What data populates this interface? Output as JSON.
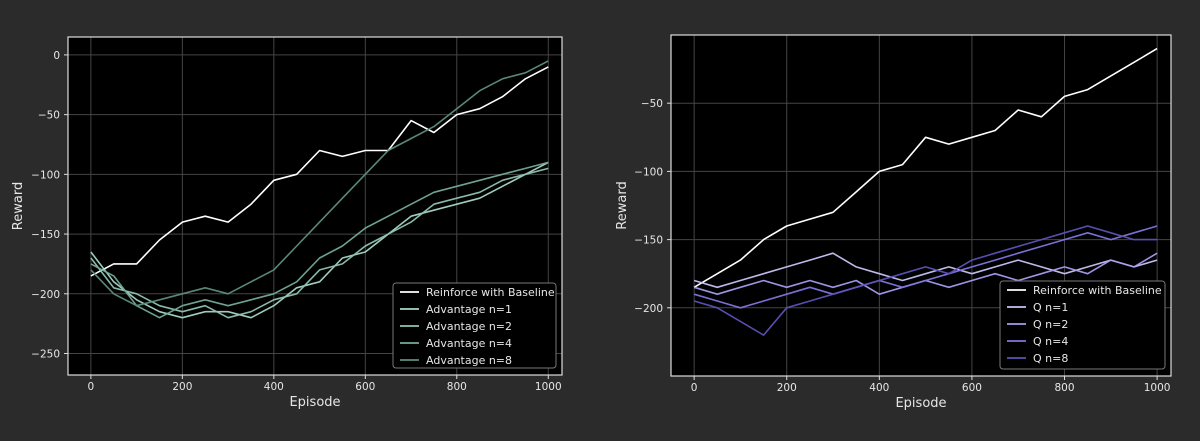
{
  "theme": {
    "background": "#2b2b2b",
    "axes_face": "#000000",
    "grid": "#444444",
    "spine": "#dddddd",
    "text": "#e6e6e6",
    "legend_face": "#000000"
  },
  "chart_data": [
    {
      "type": "line",
      "title": "",
      "xlabel": "Episode",
      "ylabel": "Reward",
      "xlim": [
        -50,
        1030
      ],
      "ylim": [
        -268,
        15
      ],
      "xticks": [
        0,
        200,
        400,
        600,
        800,
        1000
      ],
      "yticks": [
        0,
        -50,
        -100,
        -150,
        -200,
        -250
      ],
      "xtick_labels": [
        "0",
        "200",
        "400",
        "600",
        "800",
        "1000"
      ],
      "ytick_labels": [
        "0",
        "−50",
        "−100",
        "−150",
        "−200",
        "−250"
      ],
      "grid": true,
      "legend_position": "lower-right",
      "series": [
        {
          "name": "Reinforce with Baseline",
          "color": "#ffffff",
          "x": [
            0,
            50,
            100,
            150,
            200,
            250,
            300,
            350,
            400,
            450,
            500,
            550,
            600,
            650,
            700,
            750,
            800,
            850,
            900,
            950,
            1000
          ],
          "y": [
            -185,
            -175,
            -175,
            -155,
            -140,
            -135,
            -140,
            -125,
            -105,
            -100,
            -80,
            -85,
            -80,
            -80,
            -55,
            -65,
            -50,
            -45,
            -35,
            -20,
            -10
          ]
        },
        {
          "name": "Advantage n=1",
          "color": "#a7d8c6",
          "x": [
            0,
            50,
            100,
            150,
            200,
            250,
            300,
            350,
            400,
            450,
            500,
            550,
            600,
            650,
            700,
            750,
            800,
            850,
            900,
            950,
            1000
          ],
          "y": [
            -165,
            -190,
            -205,
            -215,
            -220,
            -215,
            -215,
            -220,
            -210,
            -195,
            -190,
            -170,
            -165,
            -150,
            -135,
            -130,
            -125,
            -120,
            -110,
            -100,
            -90
          ]
        },
        {
          "name": "Advantage n=2",
          "color": "#8fc4b0",
          "x": [
            0,
            50,
            100,
            150,
            200,
            250,
            300,
            350,
            400,
            450,
            500,
            550,
            600,
            650,
            700,
            750,
            800,
            850,
            900,
            950,
            1000
          ],
          "y": [
            -170,
            -195,
            -200,
            -210,
            -215,
            -210,
            -220,
            -215,
            -205,
            -200,
            -180,
            -175,
            -160,
            -150,
            -140,
            -125,
            -120,
            -115,
            -105,
            -100,
            -95
          ]
        },
        {
          "name": "Advantage n=4",
          "color": "#74ab97",
          "x": [
            0,
            50,
            100,
            150,
            200,
            250,
            300,
            350,
            400,
            450,
            500,
            550,
            600,
            650,
            700,
            750,
            800,
            850,
            900,
            950,
            1000
          ],
          "y": [
            -175,
            -185,
            -210,
            -220,
            -210,
            -205,
            -210,
            -205,
            -200,
            -190,
            -170,
            -160,
            -145,
            -135,
            -125,
            -115,
            -110,
            -105,
            -100,
            -95,
            -90
          ]
        },
        {
          "name": "Advantage n=8",
          "color": "#5e8f7e",
          "x": [
            0,
            50,
            100,
            150,
            200,
            250,
            300,
            350,
            400,
            450,
            500,
            550,
            600,
            650,
            700,
            750,
            800,
            850,
            900,
            950,
            1000
          ],
          "y": [
            -180,
            -200,
            -210,
            -205,
            -200,
            -195,
            -200,
            -190,
            -180,
            -160,
            -140,
            -120,
            -100,
            -80,
            -70,
            -60,
            -45,
            -30,
            -20,
            -15,
            -5
          ]
        }
      ]
    },
    {
      "type": "line",
      "title": "",
      "xlabel": "Episode",
      "ylabel": "Reward",
      "xlim": [
        -50,
        1030
      ],
      "ylim": [
        -250,
        0
      ],
      "xticks": [
        0,
        200,
        400,
        600,
        800,
        1000
      ],
      "yticks": [
        -50,
        -100,
        -150,
        -200
      ],
      "xtick_labels": [
        "0",
        "200",
        "400",
        "600",
        "800",
        "1000"
      ],
      "ytick_labels": [
        "−50",
        "−100",
        "−150",
        "−200"
      ],
      "grid": true,
      "legend_position": "lower-right",
      "series": [
        {
          "name": "Reinforce with Baseline",
          "color": "#ffffff",
          "x": [
            0,
            50,
            100,
            150,
            200,
            250,
            300,
            350,
            400,
            450,
            500,
            550,
            600,
            650,
            700,
            750,
            800,
            850,
            900,
            950,
            1000
          ],
          "y": [
            -185,
            -175,
            -165,
            -150,
            -140,
            -135,
            -130,
            -115,
            -100,
            -95,
            -75,
            -80,
            -75,
            -70,
            -55,
            -60,
            -45,
            -40,
            -30,
            -20,
            -10
          ]
        },
        {
          "name": "Q n=1",
          "color": "#c9c3f5",
          "x": [
            0,
            50,
            100,
            150,
            200,
            250,
            300,
            350,
            400,
            450,
            500,
            550,
            600,
            650,
            700,
            750,
            800,
            850,
            900,
            950,
            1000
          ],
          "y": [
            -180,
            -185,
            -180,
            -175,
            -170,
            -165,
            -160,
            -170,
            -175,
            -180,
            -175,
            -170,
            -175,
            -170,
            -165,
            -170,
            -175,
            -170,
            -165,
            -170,
            -165
          ]
        },
        {
          "name": "Q n=2",
          "color": "#a79cf0",
          "x": [
            0,
            50,
            100,
            150,
            200,
            250,
            300,
            350,
            400,
            450,
            500,
            550,
            600,
            650,
            700,
            750,
            800,
            850,
            900,
            950,
            1000
          ],
          "y": [
            -185,
            -190,
            -185,
            -180,
            -185,
            -180,
            -185,
            -180,
            -190,
            -185,
            -180,
            -185,
            -180,
            -175,
            -180,
            -175,
            -170,
            -175,
            -165,
            -170,
            -160
          ]
        },
        {
          "name": "Q n=4",
          "color": "#8275e0",
          "x": [
            0,
            50,
            100,
            150,
            200,
            250,
            300,
            350,
            400,
            450,
            500,
            550,
            600,
            650,
            700,
            750,
            800,
            850,
            900,
            950,
            1000
          ],
          "y": [
            -190,
            -195,
            -200,
            -195,
            -190,
            -185,
            -190,
            -185,
            -180,
            -185,
            -180,
            -175,
            -170,
            -165,
            -160,
            -155,
            -150,
            -145,
            -150,
            -145,
            -140
          ]
        },
        {
          "name": "Q n=8",
          "color": "#5d52b8",
          "x": [
            0,
            50,
            100,
            150,
            200,
            250,
            300,
            350,
            400,
            450,
            500,
            550,
            600,
            650,
            700,
            750,
            800,
            850,
            900,
            950,
            1000
          ],
          "y": [
            -195,
            -200,
            -210,
            -220,
            -200,
            -195,
            -190,
            -185,
            -180,
            -175,
            -170,
            -175,
            -165,
            -160,
            -155,
            -150,
            -145,
            -140,
            -145,
            -150,
            -150
          ]
        }
      ]
    }
  ]
}
